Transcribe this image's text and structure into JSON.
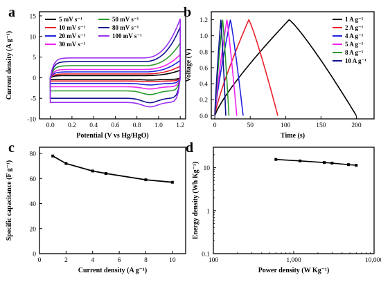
{
  "chart_data": [
    {
      "panel": "a",
      "type": "line",
      "xlabel": "Potential (V vs Hg/HgO)",
      "ylabel": "Current density (A g⁻¹)",
      "xlim": [
        -0.1,
        1.25
      ],
      "ylim": [
        -10,
        16
      ],
      "xticks": [
        "0.0",
        "0.2",
        "0.4",
        "0.6",
        "0.8",
        "1.0",
        "1.2"
      ],
      "yticks": [
        "-10",
        "-5",
        "0",
        "5",
        "10",
        "15"
      ],
      "legend_position": "top-left",
      "series": [
        {
          "name": "5 mV s⁻¹",
          "color": "#000000",
          "upper_plateau": 0.5,
          "lower_plateau": -0.4,
          "peak_max": 1.8,
          "peak_min": -0.6
        },
        {
          "name": "10 mV s⁻¹",
          "color": "#e8202a",
          "upper_plateau": 0.9,
          "lower_plateau": -0.8,
          "peak_max": 2.8,
          "peak_min": -1.0
        },
        {
          "name": "20 mV s⁻¹",
          "color": "#2222dd",
          "upper_plateau": 1.4,
          "lower_plateau": -1.4,
          "peak_max": 4.2,
          "peak_min": -1.8
        },
        {
          "name": "30 mV s⁻¹",
          "color": "#ee22ee",
          "upper_plateau": 2.0,
          "lower_plateau": -2.2,
          "peak_max": 5.6,
          "peak_min": -2.8
        },
        {
          "name": "50 mV s⁻¹",
          "color": "#2a9a2a",
          "upper_plateau": 2.9,
          "lower_plateau": -3.2,
          "peak_max": 8.4,
          "peak_min": -4.2
        },
        {
          "name": "80 mV s⁻¹",
          "color": "#101090",
          "upper_plateau": 3.9,
          "lower_plateau": -5.0,
          "peak_max": 12.3,
          "peak_min": -6.2
        },
        {
          "name": "100 mV s⁻¹",
          "color": "#9b30f0",
          "upper_plateau": 4.8,
          "lower_plateau": -6.0,
          "peak_max": 14.3,
          "peak_min": -7.2
        }
      ]
    },
    {
      "panel": "b",
      "type": "line",
      "xlabel": "Time (s)",
      "ylabel": "Voltage (V)",
      "xlim": [
        -5,
        225
      ],
      "ylim": [
        -0.04,
        1.3
      ],
      "xticks": [
        "0",
        "50",
        "100",
        "150",
        "200"
      ],
      "yticks": [
        "0.0",
        "0.2",
        "0.4",
        "0.6",
        "0.8",
        "1.0",
        "1.2"
      ],
      "legend_position": "top-right",
      "series": [
        {
          "name": "1 A g⁻¹",
          "color": "#000000",
          "charge_time": 105,
          "total_time": 200
        },
        {
          "name": "2 A g⁻¹",
          "color": "#e8202a",
          "charge_time": 48,
          "total_time": 89
        },
        {
          "name": "4 A g⁻¹",
          "color": "#2222dd",
          "charge_time": 22,
          "total_time": 40
        },
        {
          "name": "5 A g⁻¹",
          "color": "#ee22ee",
          "charge_time": 17,
          "total_time": 31
        },
        {
          "name": "8 A g⁻¹",
          "color": "#2a9a2a",
          "charge_time": 11,
          "total_time": 20
        },
        {
          "name": "10 A g⁻¹",
          "color": "#101090",
          "charge_time": 8.5,
          "total_time": 15.5
        }
      ]
    },
    {
      "panel": "c",
      "type": "line",
      "xlabel": "Current density (A g⁻¹)",
      "ylabel": "Specific capacitance (F g⁻¹)",
      "xlim": [
        0,
        11
      ],
      "ylim": [
        0,
        85
      ],
      "xticks": [
        "0",
        "2",
        "4",
        "6",
        "8",
        "10"
      ],
      "yticks": [
        "0",
        "20",
        "40",
        "60",
        "80"
      ],
      "series": [
        {
          "x": [
            1,
            2,
            4,
            5,
            8,
            10
          ],
          "y": [
            78,
            72,
            66,
            64,
            59,
            57
          ]
        }
      ]
    },
    {
      "panel": "d",
      "type": "line",
      "xscale": "log",
      "yscale": "log",
      "xlabel": "Power density (W Kg⁻¹)",
      "ylabel": "Energy density (Wh Kg⁻¹)",
      "xlim": [
        100,
        10000
      ],
      "ylim": [
        0.1,
        30
      ],
      "xticks": [
        "100",
        "1,000",
        "10,000"
      ],
      "yticks": [
        "0.1",
        "1",
        "10"
      ],
      "series": [
        {
          "x": [
            600,
            1200,
            2400,
            3000,
            4800,
            6000
          ],
          "y": [
            15.6,
            14.4,
            13.2,
            12.8,
            11.8,
            11.4
          ]
        }
      ]
    }
  ]
}
